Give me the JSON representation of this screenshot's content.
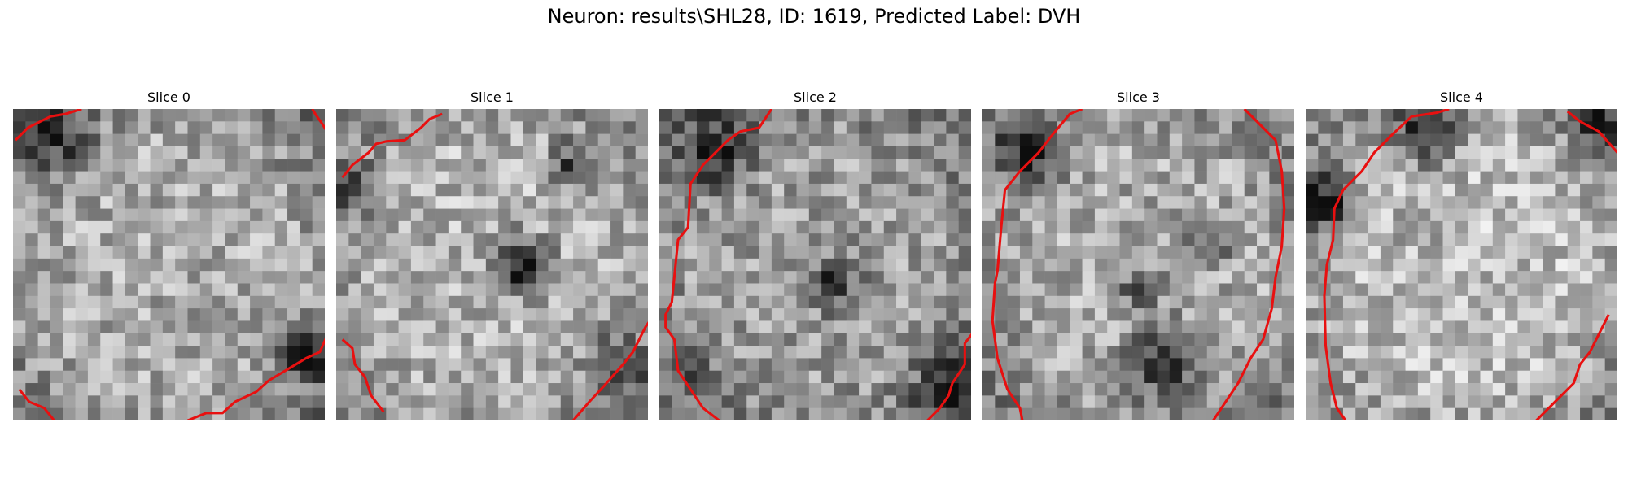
{
  "figure": {
    "title": "Neuron: results\\SHL28, ID: 1619, Predicted Label: DVH",
    "contour_color": "#e81010"
  },
  "panels": [
    {
      "label": "Slice 0",
      "seed": 11,
      "dark_spots": [
        [
          23,
          19,
          3.0,
          0.55
        ],
        [
          30,
          5,
          4.5,
          0.25
        ],
        [
          3,
          2,
          4,
          0.35
        ]
      ],
      "bright": 0.05,
      "contours": [
        [
          [
            0.2,
            2.5
          ],
          [
            1.2,
            1.5
          ],
          [
            3.0,
            0.6
          ],
          [
            4.2,
            0.4
          ],
          [
            5.5,
            0.0
          ]
        ],
        [
          [
            24.0,
            0.0
          ],
          [
            24.3,
            0.5
          ],
          [
            24.8,
            1.2
          ],
          [
            25.3,
            2.0
          ],
          [
            26.0,
            2.4
          ]
        ],
        [
          [
            0.5,
            22.5
          ],
          [
            1.3,
            23.5
          ],
          [
            2.5,
            24.0
          ],
          [
            3.3,
            25.0
          ]
        ],
        [
          [
            14.0,
            25.0
          ],
          [
            15.5,
            24.4
          ],
          [
            16.8,
            24.4
          ],
          [
            17.8,
            23.5
          ],
          [
            19.5,
            22.7
          ],
          [
            20.5,
            21.8
          ],
          [
            21.5,
            21.2
          ],
          [
            23.5,
            20.0
          ],
          [
            24.6,
            19.5
          ],
          [
            25.5,
            17.5
          ],
          [
            26.0,
            15.0
          ]
        ]
      ]
    },
    {
      "label": "Slice 1",
      "seed": 23,
      "dark_spots": [
        [
          14.5,
          12,
          3.0,
          0.6
        ],
        [
          18.5,
          4,
          2.5,
          0.4
        ],
        [
          22,
          20,
          3.5,
          0.35
        ],
        [
          1,
          6,
          3,
          0.3
        ]
      ],
      "bright": 0.08,
      "contours": [
        [
          [
            0.5,
            5.5
          ],
          [
            1.3,
            4.5
          ],
          [
            2.6,
            3.5
          ],
          [
            3.2,
            2.8
          ],
          [
            4.0,
            2.6
          ],
          [
            5.5,
            2.5
          ],
          [
            6.8,
            1.5
          ],
          [
            7.5,
            0.8
          ],
          [
            8.5,
            0.4
          ]
        ],
        [
          [
            0.5,
            18.5
          ],
          [
            1.3,
            19.2
          ],
          [
            1.5,
            20.5
          ],
          [
            2.3,
            21.5
          ],
          [
            2.8,
            23.0
          ],
          [
            3.8,
            24.3
          ]
        ],
        [
          [
            19.0,
            25.0
          ],
          [
            20.3,
            23.5
          ],
          [
            21.5,
            22.2
          ],
          [
            23.0,
            20.5
          ],
          [
            23.8,
            19.5
          ],
          [
            24.8,
            17.5
          ],
          [
            25.5,
            16.5
          ]
        ]
      ]
    },
    {
      "label": "Slice 2",
      "seed": 37,
      "dark_spots": [
        [
          13.5,
          13.5,
          3.0,
          0.4
        ],
        [
          4,
          3,
          4,
          0.4
        ],
        [
          23,
          22,
          4,
          0.4
        ],
        [
          2,
          20,
          3,
          0.2
        ]
      ],
      "bright": 0.0,
      "contours": [
        [
          [
            9.0,
            0.0
          ],
          [
            8.0,
            1.5
          ],
          [
            6.5,
            1.8
          ],
          [
            5.5,
            2.5
          ],
          [
            4.5,
            3.5
          ],
          [
            3.5,
            4.5
          ],
          [
            2.5,
            6.0
          ],
          [
            2.3,
            9.5
          ],
          [
            1.5,
            10.5
          ],
          [
            1.2,
            13.5
          ],
          [
            1.0,
            15.5
          ],
          [
            0.5,
            16.5
          ],
          [
            0.5,
            17.5
          ],
          [
            1.2,
            18.5
          ],
          [
            1.5,
            21.0
          ],
          [
            2.5,
            22.5
          ],
          [
            3.5,
            24.0
          ],
          [
            4.8,
            25.0
          ]
        ],
        [
          [
            21.5,
            25.0
          ],
          [
            22.5,
            24.0
          ],
          [
            23.2,
            23.0
          ],
          [
            23.5,
            22.0
          ],
          [
            24.5,
            20.5
          ],
          [
            24.5,
            18.8
          ],
          [
            25.5,
            17.5
          ]
        ]
      ]
    },
    {
      "label": "Slice 3",
      "seed": 51,
      "dark_spots": [
        [
          14,
          20,
          4.0,
          0.5
        ],
        [
          3.5,
          3,
          3.5,
          0.5
        ],
        [
          18,
          10,
          2.5,
          0.35
        ],
        [
          12,
          14,
          2.5,
          0.3
        ]
      ],
      "bright": 0.05,
      "contours": [
        [
          [
            8.0,
            0.0
          ],
          [
            7.0,
            0.4
          ],
          [
            5.5,
            2.2
          ],
          [
            4.5,
            3.5
          ],
          [
            3.0,
            5.0
          ],
          [
            1.8,
            6.5
          ],
          [
            1.5,
            9.5
          ],
          [
            1.2,
            13.0
          ],
          [
            1.0,
            14.0
          ],
          [
            0.8,
            17.0
          ],
          [
            1.2,
            20.0
          ],
          [
            2.0,
            22.5
          ],
          [
            3.0,
            24.0
          ],
          [
            3.2,
            25.0
          ]
        ],
        [
          [
            21.0,
            0.0
          ],
          [
            22.5,
            1.5
          ],
          [
            23.5,
            2.5
          ],
          [
            24.0,
            5.0
          ],
          [
            24.2,
            8.0
          ],
          [
            24.0,
            11.0
          ],
          [
            23.5,
            13.5
          ],
          [
            23.2,
            16.0
          ],
          [
            22.5,
            18.5
          ],
          [
            21.5,
            20.0
          ],
          [
            20.5,
            22.0
          ],
          [
            19.5,
            23.5
          ],
          [
            18.5,
            25.0
          ]
        ]
      ]
    },
    {
      "label": "Slice 4",
      "seed": 67,
      "dark_spots": [
        [
          1,
          7,
          3.5,
          0.6
        ],
        [
          9,
          1.5,
          4,
          0.45
        ],
        [
          23,
          1,
          3.5,
          0.4
        ],
        [
          8,
          9,
          2.0,
          0.25
        ]
      ],
      "bright": 0.12,
      "contours": [
        [
          [
            11.5,
            0.0
          ],
          [
            10.5,
            0.3
          ],
          [
            8.5,
            0.6
          ],
          [
            7.0,
            2.0
          ],
          [
            5.5,
            3.5
          ],
          [
            4.5,
            5.0
          ],
          [
            3.0,
            6.5
          ],
          [
            2.3,
            8.0
          ],
          [
            2.2,
            10.5
          ],
          [
            1.7,
            12.5
          ],
          [
            1.5,
            15.0
          ],
          [
            1.6,
            19.0
          ],
          [
            2.0,
            22.0
          ],
          [
            2.5,
            24.0
          ],
          [
            3.2,
            25.0
          ]
        ],
        [
          [
            21.0,
            0.2
          ],
          [
            22.0,
            1.0
          ],
          [
            23.5,
            1.8
          ],
          [
            25.0,
            3.5
          ]
        ],
        [
          [
            18.5,
            25.0
          ],
          [
            20.0,
            23.5
          ],
          [
            21.5,
            22.0
          ],
          [
            22.0,
            20.5
          ],
          [
            22.8,
            19.5
          ],
          [
            23.8,
            17.5
          ],
          [
            24.3,
            16.5
          ]
        ]
      ]
    }
  ]
}
